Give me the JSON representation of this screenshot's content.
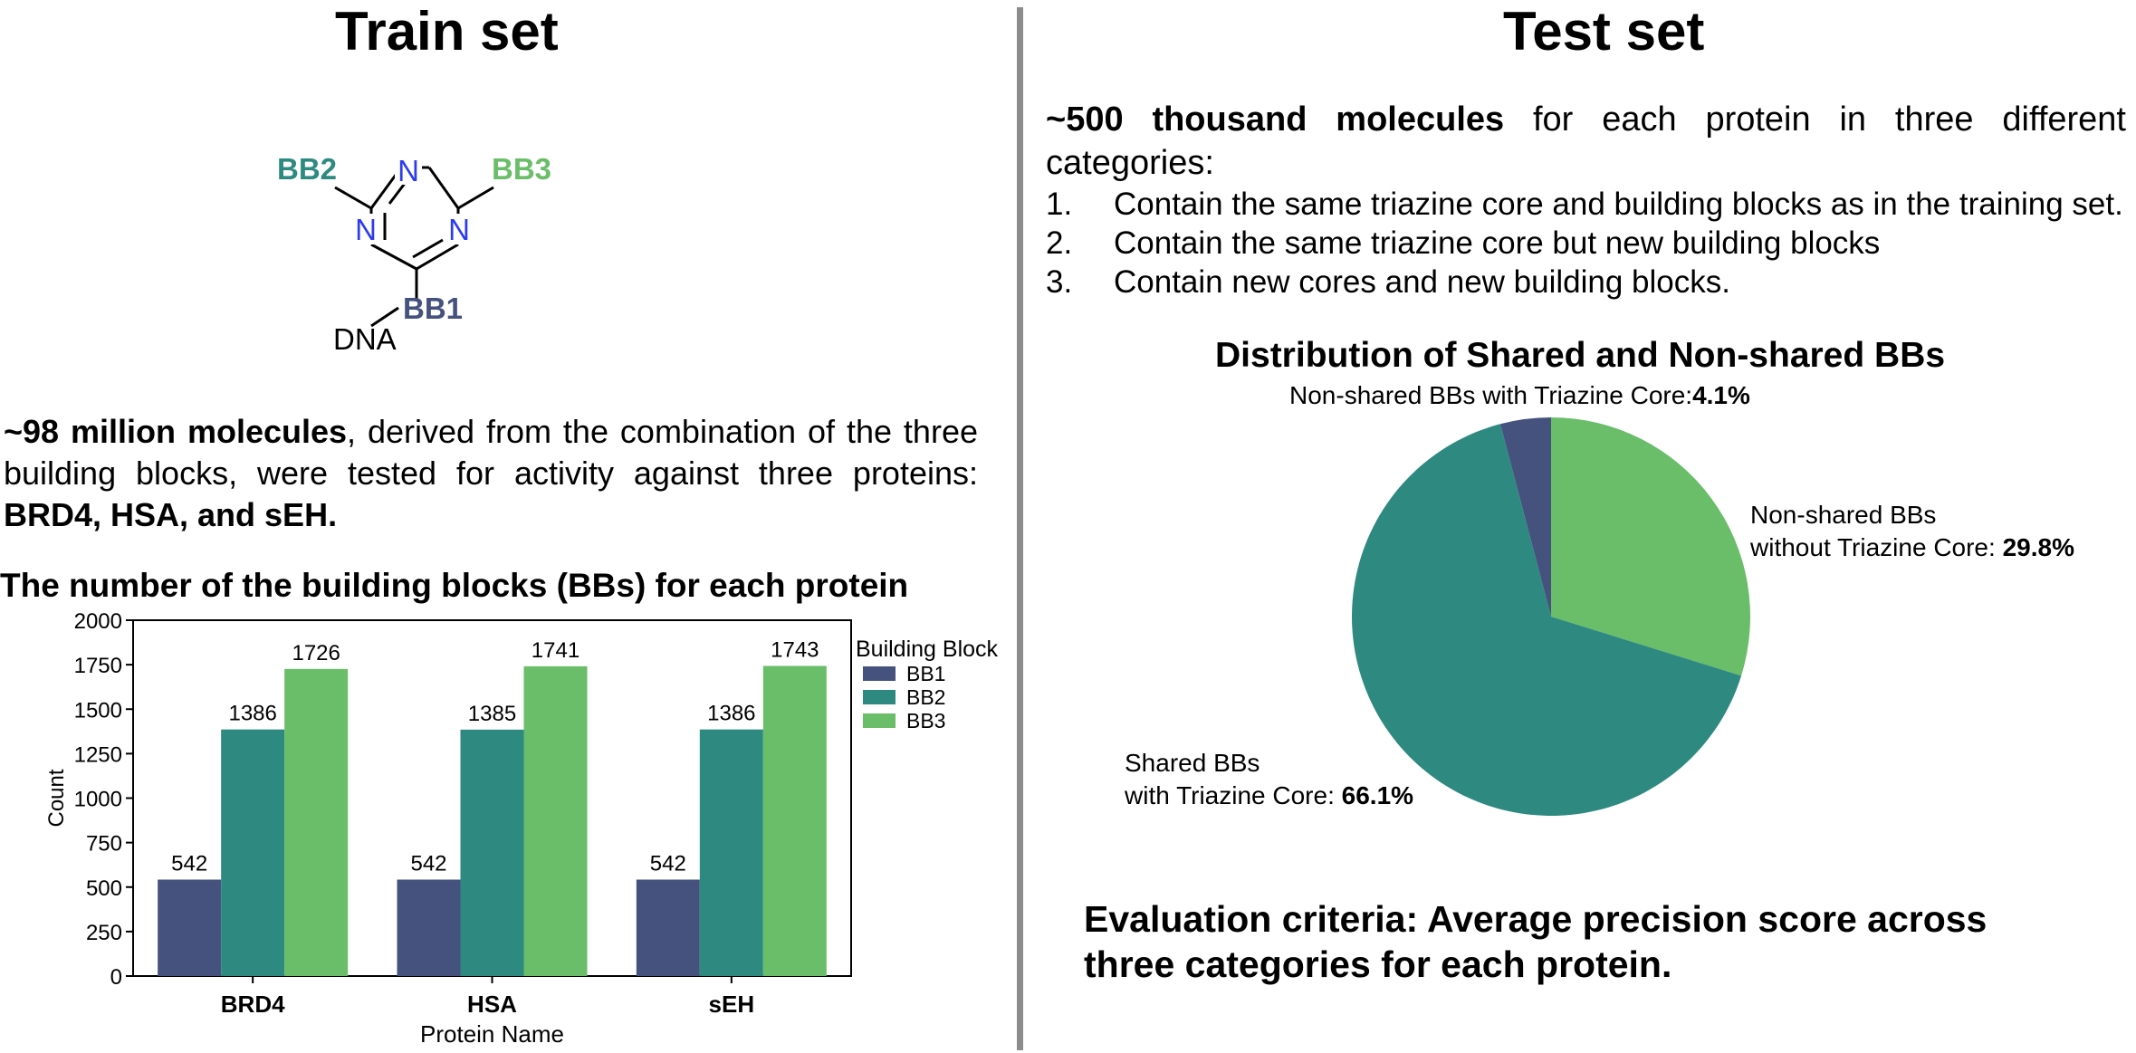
{
  "left": {
    "title": "Train set",
    "molecule": {
      "bb1": "BB1",
      "bb2": "BB2",
      "bb3": "BB3",
      "n_label": "N",
      "dna": "DNA",
      "colors": {
        "bb1": "#45527e",
        "bb2": "#2e8a80",
        "bb3": "#6abd69",
        "n": "#2b3bf0"
      }
    },
    "description": {
      "bold1": "~98 million molecules",
      "text1": ", derived from the combination of the three building blocks, were tested for activity against three proteins: ",
      "bold2": "BRD4, HSA, and sEH."
    }
  },
  "right": {
    "title": "Test set",
    "intro_bold": "~500 thousand molecules",
    "intro_text": " for each protein in three different categories:",
    "list": [
      {
        "num": "1.",
        "text": "Contain the same triazine core and building blocks as in the training set."
      },
      {
        "num": "2.",
        "text": "Contain the same triazine core but new building blocks"
      },
      {
        "num": "3.",
        "text": "Contain new cores and new building blocks."
      }
    ],
    "evaluation": {
      "line1": "Evaluation criteria: Average precision score across",
      "line2": "three categories for each protein."
    }
  },
  "chart_data": [
    {
      "type": "bar",
      "title": "The number of the building blocks (BBs) for each protein",
      "xlabel": "Protein Name",
      "ylabel": "Count",
      "categories": [
        "BRD4",
        "HSA",
        "sEH"
      ],
      "ylim": [
        0,
        2000
      ],
      "yticks": [
        "0",
        "250",
        "500",
        "750",
        "1000",
        "1250",
        "1500",
        "1750",
        "2000"
      ],
      "legend_title": "Building Block",
      "legend_position": "right",
      "series": [
        {
          "name": "BB1",
          "color": "#45527e",
          "values": [
            542,
            542,
            542
          ]
        },
        {
          "name": "BB2",
          "color": "#2e8a80",
          "values": [
            1386,
            1385,
            1386
          ]
        },
        {
          "name": "BB3",
          "color": "#6abd69",
          "values": [
            1726,
            1741,
            1743
          ]
        }
      ]
    },
    {
      "type": "pie",
      "title": "Distribution of Shared and Non-shared BBs",
      "slices": [
        {
          "label": "Non-shared BBs with Triazine Core:",
          "value": "4.1%",
          "percent": 4.1,
          "color": "#45527e"
        },
        {
          "label_line1": "Non-shared BBs",
          "label_line2": "without Triazine Core: ",
          "value": "29.8%",
          "percent": 29.8,
          "color": "#6abd69"
        },
        {
          "label_line1": "Shared BBs",
          "label_line2": "with Triazine Core: ",
          "value": "66.1%",
          "percent": 66.1,
          "color": "#2e8a80"
        }
      ]
    }
  ]
}
